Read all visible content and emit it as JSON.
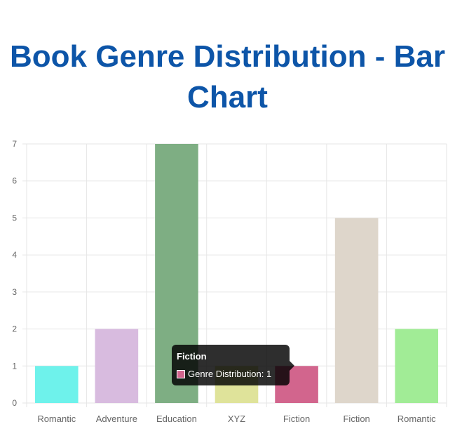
{
  "page": {
    "title": "Book Genre Distribution - Bar Chart"
  },
  "chart_data": {
    "type": "bar",
    "categories": [
      "Romantic",
      "Adventure",
      "Education",
      "XYZ",
      "Fiction",
      "Fiction",
      "Romantic"
    ],
    "series": [
      {
        "name": "Genre Distribution",
        "values": [
          1,
          2,
          7,
          1,
          1,
          5,
          2
        ],
        "colors": [
          "#6ef2eb",
          "#d8bbdf",
          "#7eae83",
          "#dfe39a",
          "#d2658d",
          "#ded6cb",
          "#a1ec96"
        ]
      }
    ],
    "ylim": [
      0,
      7
    ],
    "yticks": [
      0,
      1,
      2,
      3,
      4,
      5,
      6,
      7
    ],
    "grid": true,
    "legend": "none"
  },
  "tooltip": {
    "title": "Fiction",
    "label": "Genre Distribution: 1",
    "color": "#d2658d"
  },
  "colors": {
    "title": "#0d55a8",
    "grid": "#e6e6e6",
    "tick_text": "#666666"
  }
}
